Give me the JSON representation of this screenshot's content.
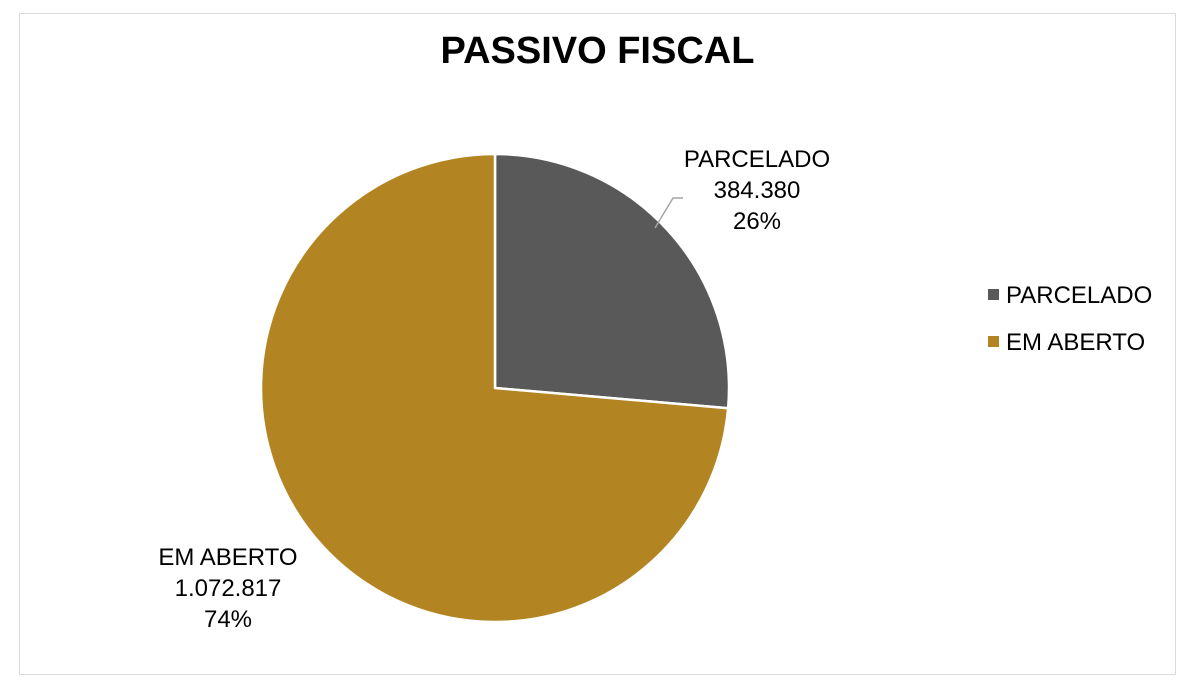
{
  "chart_data": {
    "type": "pie",
    "title": "PASSIVO FISCAL",
    "slices": [
      {
        "name": "PARCELADO",
        "value": 384380,
        "value_label": "384.380",
        "percent_label": "26%",
        "color": "#595959"
      },
      {
        "name": "EM ABERTO",
        "value": 1072817,
        "value_label": "1.072.817",
        "percent_label": "74%",
        "color": "#b38522"
      }
    ],
    "legend": {
      "position": "right",
      "entries": [
        "PARCELADO",
        "EM ABERTO"
      ]
    }
  }
}
